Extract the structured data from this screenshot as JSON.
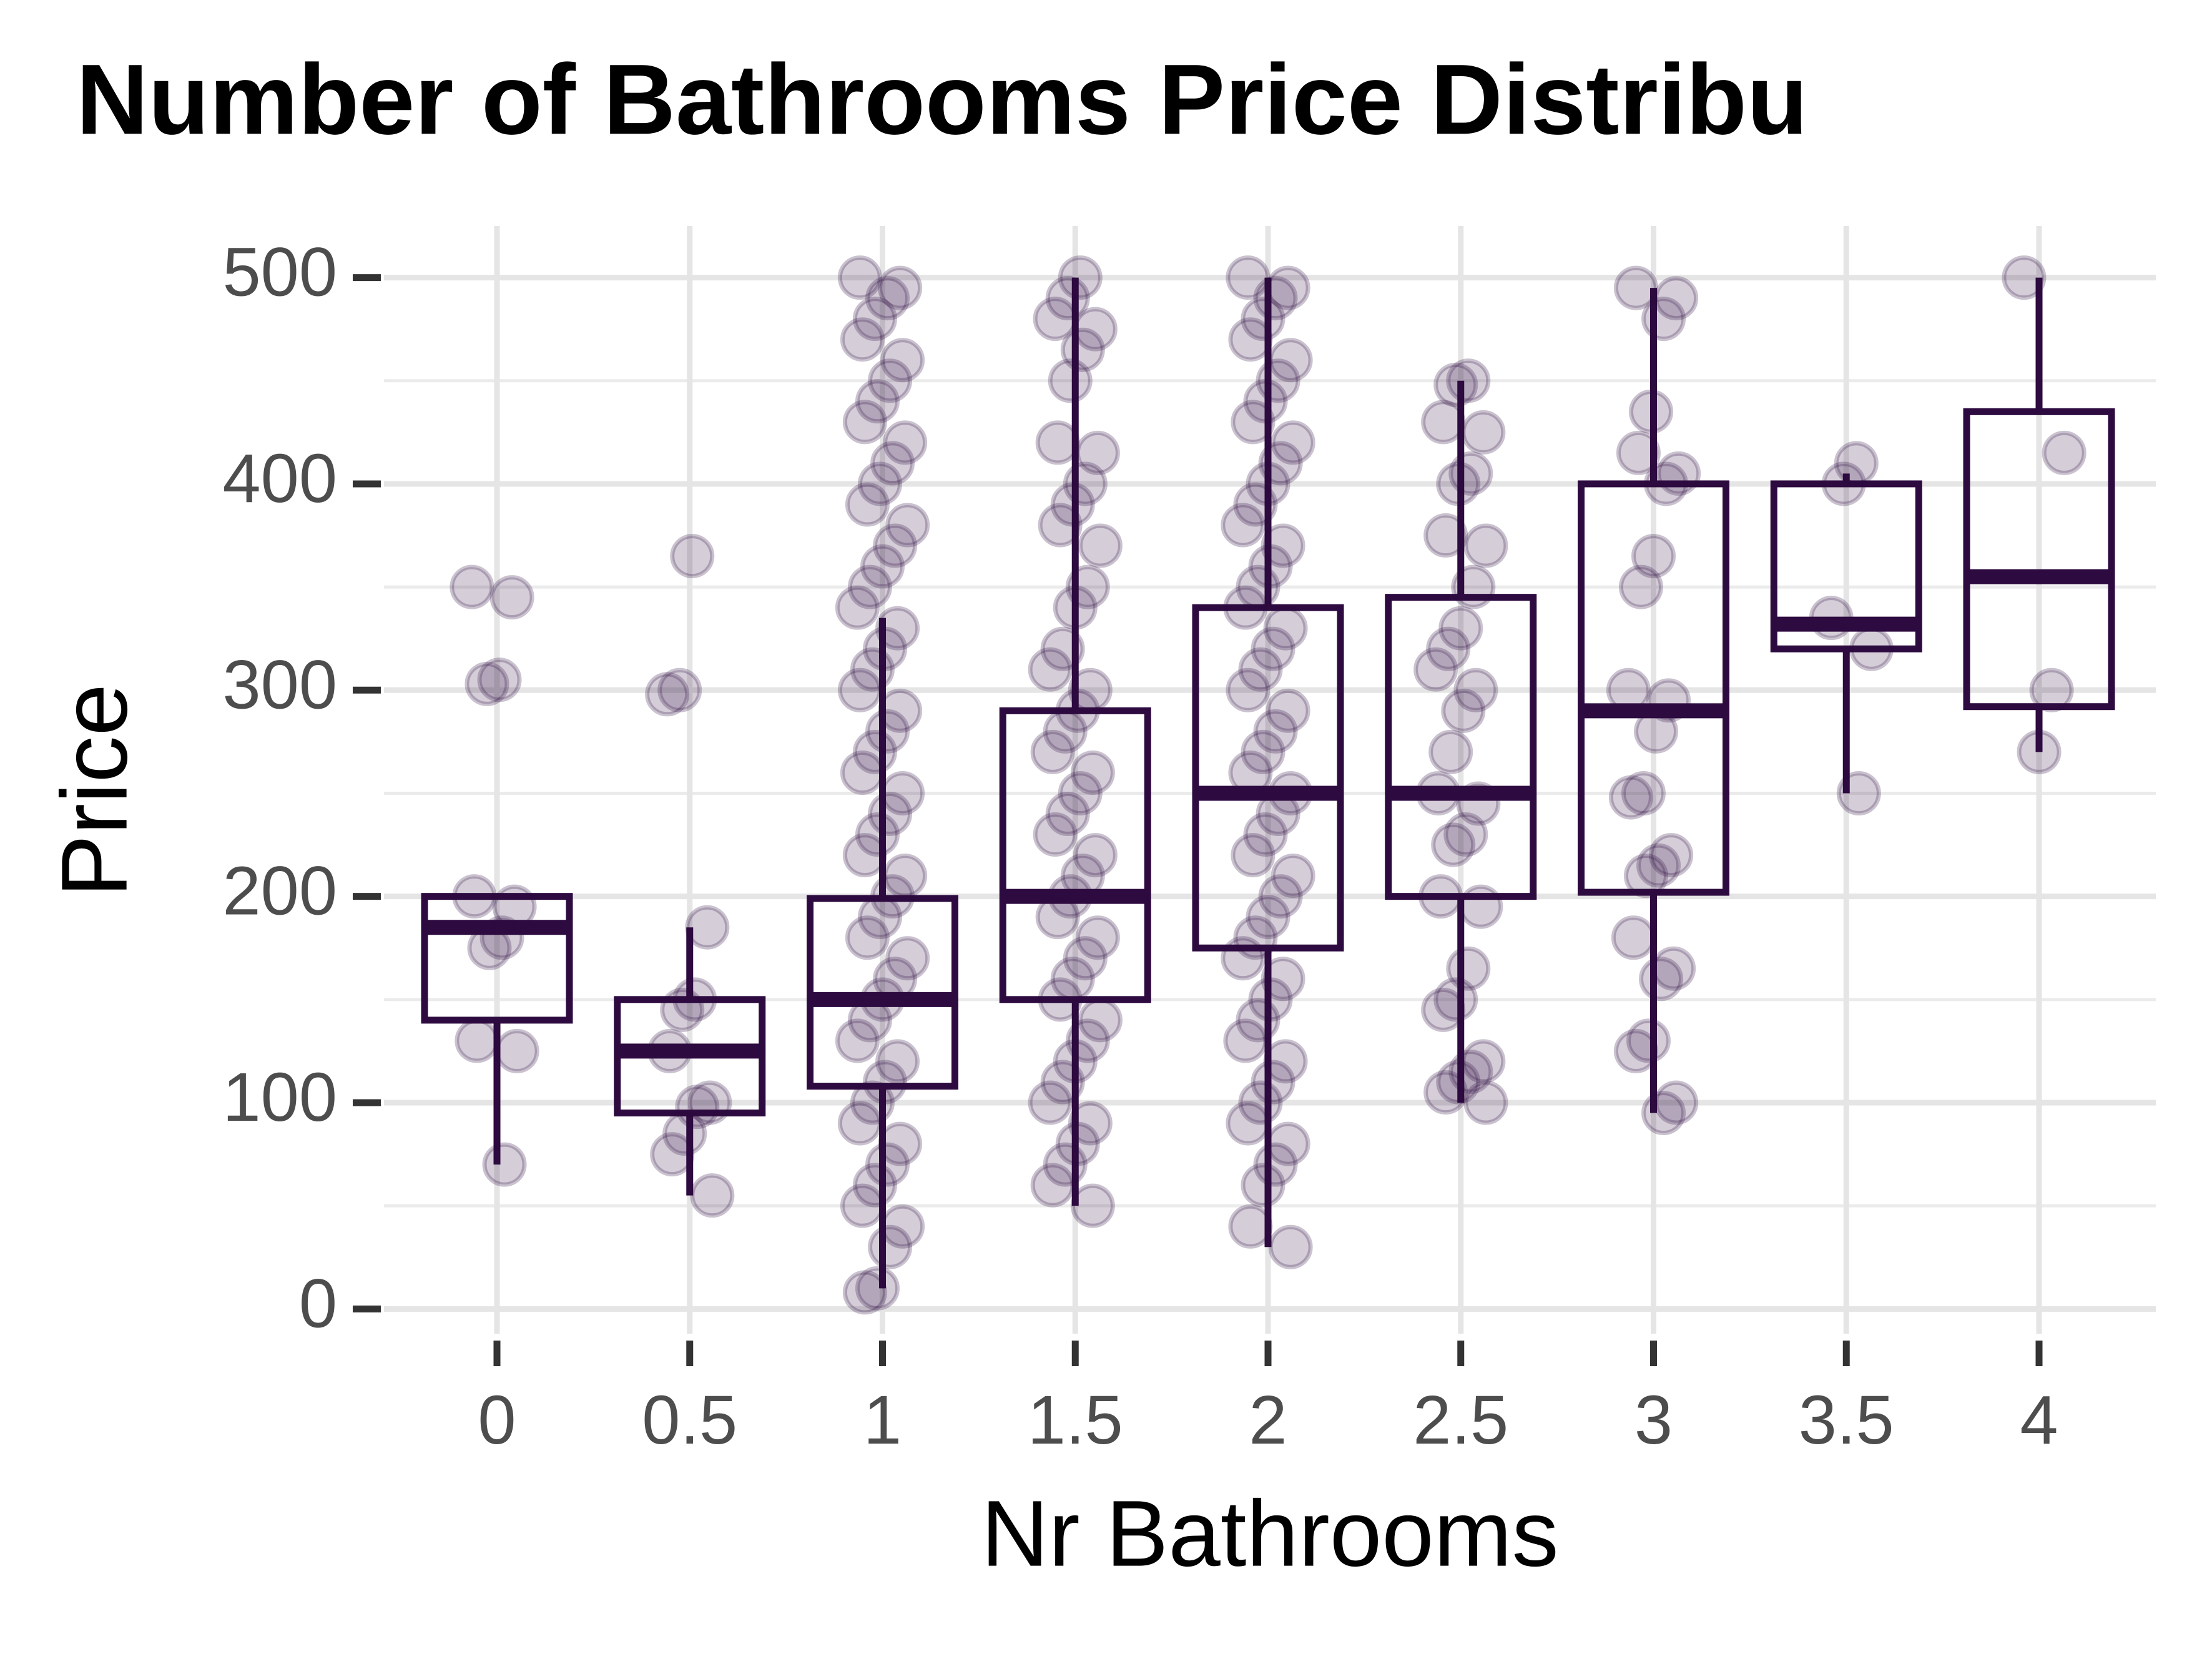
{
  "chart_data": {
    "type": "boxplot",
    "title": "Number of Bathrooms Price Distribu",
    "x_label": "Nr Bathrooms",
    "y_label": "Price",
    "categories": [
      "0",
      "0.5",
      "1",
      "1.5",
      "2",
      "2.5",
      "3",
      "3.5",
      "4"
    ],
    "color": "#2d0a3f",
    "ylim": [
      -12,
      525
    ],
    "yticks": [
      0,
      100,
      200,
      300,
      400,
      500
    ],
    "minor_grid": [
      50,
      150,
      250,
      350,
      450
    ],
    "grid": true,
    "boxes": [
      {
        "low": 70,
        "q1": 140,
        "median": 185,
        "q3": 200,
        "high": 200
      },
      {
        "low": 55,
        "q1": 95,
        "median": 125,
        "q3": 150,
        "high": 185
      },
      {
        "low": 10,
        "q1": 108,
        "median": 150,
        "q3": 199,
        "high": 335
      },
      {
        "low": 50,
        "q1": 150,
        "median": 200,
        "q3": 290,
        "high": 500
      },
      {
        "low": 30,
        "q1": 175,
        "median": 250,
        "q3": 340,
        "high": 500
      },
      {
        "low": 100,
        "q1": 200,
        "median": 250,
        "q3": 345,
        "high": 450
      },
      {
        "low": 95,
        "q1": 202,
        "median": 290,
        "q3": 400,
        "high": 495
      },
      {
        "low": 250,
        "q1": 320,
        "median": 332,
        "q3": 400,
        "high": 405
      },
      {
        "low": 270,
        "q1": 292,
        "median": 355,
        "q3": 435,
        "high": 500
      }
    ],
    "points": [
      [
        350,
        345,
        305,
        303,
        200,
        195,
        180,
        175,
        130,
        125,
        70
      ],
      [
        365,
        300,
        298,
        185,
        150,
        145,
        125,
        100,
        98,
        85,
        75,
        55
      ],
      [
        500,
        495,
        490,
        480,
        470,
        460,
        450,
        440,
        430,
        420,
        410,
        400,
        390,
        380,
        370,
        360,
        350,
        340,
        330,
        320,
        310,
        300,
        290,
        280,
        270,
        260,
        250,
        240,
        230,
        220,
        210,
        200,
        190,
        180,
        170,
        160,
        150,
        140,
        130,
        120,
        110,
        100,
        90,
        80,
        70,
        60,
        50,
        40,
        30,
        10,
        8
      ],
      [
        500,
        490,
        480,
        475,
        465,
        450,
        420,
        415,
        400,
        390,
        380,
        370,
        350,
        340,
        320,
        310,
        300,
        290,
        280,
        270,
        260,
        250,
        240,
        230,
        220,
        210,
        200,
        190,
        180,
        170,
        160,
        150,
        140,
        130,
        120,
        110,
        100,
        90,
        80,
        70,
        60,
        50
      ],
      [
        500,
        495,
        490,
        480,
        470,
        460,
        450,
        440,
        430,
        420,
        410,
        400,
        390,
        380,
        370,
        360,
        350,
        340,
        330,
        320,
        310,
        300,
        290,
        280,
        270,
        260,
        250,
        240,
        230,
        220,
        210,
        200,
        190,
        180,
        170,
        160,
        150,
        140,
        130,
        120,
        110,
        100,
        90,
        80,
        70,
        60,
        40,
        30
      ],
      [
        450,
        448,
        430,
        425,
        405,
        400,
        375,
        370,
        350,
        330,
        320,
        310,
        300,
        290,
        270,
        250,
        245,
        230,
        225,
        200,
        195,
        165,
        150,
        145,
        120,
        115,
        110,
        105,
        100
      ],
      [
        495,
        490,
        480,
        435,
        415,
        405,
        400,
        365,
        350,
        300,
        295,
        280,
        250,
        248,
        220,
        215,
        210,
        180,
        165,
        160,
        130,
        125,
        100,
        95
      ],
      [
        410,
        400,
        335,
        320,
        250
      ],
      [
        500,
        415,
        300,
        270
      ]
    ]
  }
}
